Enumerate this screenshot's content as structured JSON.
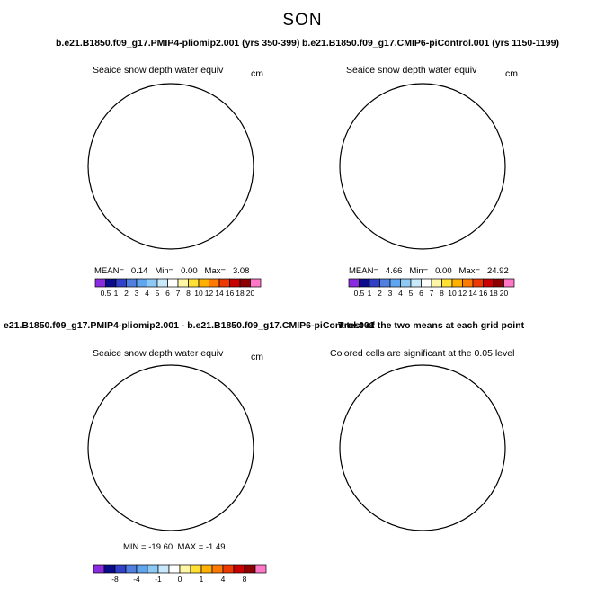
{
  "figure": {
    "season": "SON",
    "title_left": "b.e21.B1850.f09_g17.PMIP4-pliomip2.001 (yrs 350-399)",
    "title_right": "b.e21.B1850.f09_g17.CMIP6-piControl.001 (yrs 1150-1199)",
    "title_diff_overlap": "e21.B1850.f09_g17.PMIP4-pliomip2.001 - b.e21.B1850.f09_g17.CMIP6-piControl.001",
    "title_ttest": "T-test of the two means at each grid point"
  },
  "panels": {
    "p1": {
      "subtitle": "Seaice snow depth water equiv",
      "unit": "cm",
      "mean_label": "MEAN=",
      "mean": "0.14",
      "min_label": "Min=",
      "min": "0.00",
      "max_label": "Max=",
      "max": "3.08"
    },
    "p2": {
      "subtitle": "Seaice snow depth water equiv",
      "unit": "cm",
      "mean_label": "MEAN=",
      "mean": "4.66",
      "min_label": "Min=",
      "min": "0.00",
      "max_label": "Max=",
      "max": "24.92"
    },
    "p3": {
      "subtitle": "Seaice snow depth water equiv",
      "unit": "cm",
      "min_label": "MIN =",
      "min": "-19.60",
      "max_label": "MAX =",
      "max": "-1.49"
    },
    "p4": {
      "subtitle": "Colored cells are significant at the 0.05 level"
    }
  },
  "chart_data": [
    {
      "type": "heatmap",
      "panel": "top-left",
      "projection": "north-polar-stereographic",
      "variable": "Seaice snow depth water equiv",
      "units": "cm",
      "mean": 0.14,
      "min": 0.0,
      "max": 3.08,
      "colorbar_levels": [
        "0.5",
        "1",
        "2",
        "3",
        "4",
        "5",
        "6",
        "7",
        "8",
        "10",
        "12",
        "14",
        "16",
        "18",
        "20"
      ],
      "colorbar_colors": [
        "#8a2be2",
        "#0a0a8c",
        "#3040c8",
        "#4f7fe0",
        "#5fa5f0",
        "#8ccaf5",
        "#c8e8fb",
        "#ffffff",
        "#fff7a6",
        "#ffe033",
        "#ffb000",
        "#ff7a00",
        "#ee3a00",
        "#c80000",
        "#8c0000",
        "#ff78c8"
      ]
    },
    {
      "type": "heatmap",
      "panel": "top-right",
      "projection": "north-polar-stereographic",
      "variable": "Seaice snow depth water equiv",
      "units": "cm",
      "mean": 4.66,
      "min": 0.0,
      "max": 24.92,
      "colorbar_levels": [
        "0.5",
        "1",
        "2",
        "3",
        "4",
        "5",
        "6",
        "7",
        "8",
        "10",
        "12",
        "14",
        "16",
        "18",
        "20"
      ]
    },
    {
      "type": "heatmap",
      "panel": "bottom-left",
      "projection": "north-polar-stereographic",
      "variable": "Seaice snow depth water equiv difference",
      "units": "cm",
      "min": -19.6,
      "max": -1.49,
      "colorbar_tick_labels": [
        "-8",
        "-4",
        "-1",
        "0",
        "1",
        "4",
        "8"
      ],
      "colorbar_colors": [
        "#8a2be2",
        "#0a0a8c",
        "#3040c8",
        "#4f7fe0",
        "#5fa5f0",
        "#8ccaf5",
        "#c8e8fb",
        "#ffffff",
        "#fff7a6",
        "#ffe033",
        "#ffb000",
        "#ff7a00",
        "#ee3a00",
        "#c80000",
        "#8c0000",
        "#ff78c8"
      ]
    },
    {
      "type": "heatmap",
      "panel": "bottom-right",
      "projection": "north-polar-stereographic",
      "variable": "T-test significance (0.05 level)",
      "significant_color": "#ff7a00"
    }
  ]
}
